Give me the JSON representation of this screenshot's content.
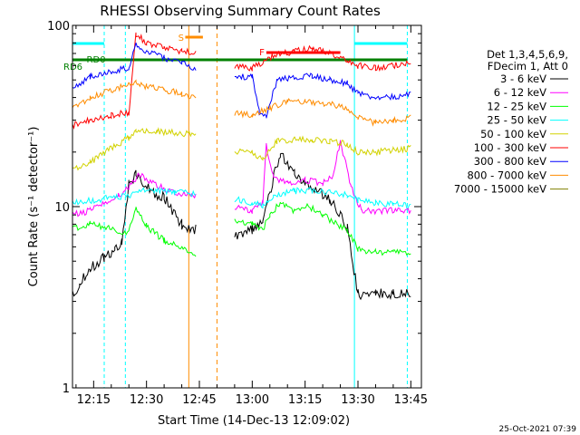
{
  "chart_data": {
    "type": "line",
    "title": "RHESSI Observing Summary Count Rates",
    "xlabel": "Start Time (14-Dec-13 12:09:02)",
    "ylabel": "Count Rate (s⁻¹ detector⁻¹)",
    "y_scale": "log",
    "ylim": [
      1,
      100
    ],
    "xlim": [
      "12:09",
      "13:48"
    ],
    "x_ticks": [
      "12:15",
      "12:30",
      "12:45",
      "13:00",
      "13:15",
      "13:30",
      "13:45"
    ],
    "y_ticks": [
      "1",
      "10",
      "100"
    ],
    "legend_header": [
      "Det 1,3,4,5,6,9,",
      "FDecim 1, Att 0"
    ],
    "legend_position": "right",
    "series": [
      {
        "name": "3 - 6 keV",
        "color": "#000000",
        "x": [
          "12:09",
          "12:11",
          "12:14",
          "12:18",
          "12:21",
          "12:23",
          "12:25",
          "12:27",
          "12:29",
          "12:32",
          "12:35",
          "12:40",
          "12:44",
          "12:50",
          "12:55",
          "13:00",
          "13:03",
          "13:05",
          "13:08",
          "13:12",
          "13:15",
          "13:18",
          "13:22",
          "13:25",
          "13:27",
          "13:30",
          "13:35",
          "13:40",
          "13:45"
        ],
        "y": [
          3.2,
          3.8,
          4.6,
          5.2,
          5.8,
          6.4,
          13.5,
          15.0,
          13.5,
          12.0,
          11.2,
          8.0,
          7.5,
          null,
          7.0,
          7.5,
          8.0,
          12.0,
          20.0,
          15.0,
          13.0,
          12.5,
          11.0,
          9.0,
          7.5,
          3.3,
          3.3,
          3.3,
          3.3
        ]
      },
      {
        "name": "6 - 12 keV",
        "color": "#ff00ff",
        "x": [
          "12:09",
          "12:14",
          "12:18",
          "12:22",
          "12:25",
          "12:28",
          "12:33",
          "12:38",
          "12:44",
          "12:50",
          "12:55",
          "13:00",
          "13:03",
          "13:04",
          "13:06",
          "13:10",
          "13:15",
          "13:20",
          "13:23",
          "13:25",
          "13:28",
          "13:31",
          "13:36",
          "13:41",
          "13:45"
        ],
        "y": [
          9.0,
          9.5,
          10.5,
          11.5,
          12.8,
          15.0,
          13.0,
          12.0,
          11.5,
          null,
          10.0,
          9.5,
          10.5,
          22.0,
          14.5,
          13.5,
          14.0,
          13.5,
          15.0,
          23.0,
          13.0,
          9.5,
          9.5,
          9.5,
          9.5
        ]
      },
      {
        "name": "12 - 25 keV",
        "color": "#00ff00",
        "x": [
          "12:09",
          "12:14",
          "12:20",
          "12:25",
          "12:27",
          "12:30",
          "12:35",
          "12:40",
          "12:44",
          "12:50",
          "12:55",
          "13:00",
          "13:03",
          "13:05",
          "13:08",
          "13:12",
          "13:16",
          "13:20",
          "13:24",
          "13:27",
          "13:30",
          "13:35",
          "13:40",
          "13:45"
        ],
        "y": [
          7.5,
          8.0,
          7.5,
          7.2,
          10.0,
          7.8,
          6.5,
          6.0,
          5.5,
          null,
          8.5,
          8.0,
          7.5,
          9.0,
          10.5,
          9.5,
          10.0,
          9.0,
          8.0,
          7.5,
          5.8,
          5.6,
          5.6,
          5.6
        ]
      },
      {
        "name": "25 - 50 keV",
        "color": "#00ffff",
        "x": [
          "12:09",
          "12:14",
          "12:20",
          "12:25",
          "12:28",
          "12:33",
          "12:38",
          "12:44",
          "12:50",
          "12:55",
          "13:00",
          "13:03",
          "13:06",
          "13:12",
          "13:17",
          "13:22",
          "13:27",
          "13:30",
          "13:35",
          "13:40",
          "13:45"
        ],
        "y": [
          10.5,
          10.8,
          11.2,
          11.5,
          12.5,
          12.2,
          12.0,
          11.8,
          null,
          11.0,
          10.5,
          10.2,
          11.5,
          12.2,
          12.3,
          12.0,
          11.6,
          10.8,
          10.5,
          10.3,
          10.2
        ]
      },
      {
        "name": "50 - 100 keV",
        "color": "#d2d200",
        "x": [
          "12:09",
          "12:14",
          "12:20",
          "12:25",
          "12:27",
          "12:33",
          "12:38",
          "12:44",
          "12:50",
          "12:55",
          "13:00",
          "13:03",
          "13:07",
          "13:12",
          "13:17",
          "13:22",
          "13:27",
          "13:30",
          "13:35",
          "13:40",
          "13:45"
        ],
        "y": [
          16.0,
          17.5,
          21.0,
          24.0,
          26.5,
          26.0,
          25.5,
          25.0,
          null,
          20.0,
          20.0,
          18.0,
          23.0,
          23.5,
          23.5,
          23.0,
          22.0,
          20.0,
          20.0,
          20.5,
          21.0
        ]
      },
      {
        "name": "100 - 300 keV",
        "color": "#ff0000",
        "x": [
          "12:09",
          "12:14",
          "12:20",
          "12:25",
          "12:27",
          "12:30",
          "12:35",
          "12:40",
          "12:44",
          "12:50",
          "12:55",
          "13:00",
          "13:03",
          "13:06",
          "13:12",
          "13:17",
          "13:22",
          "13:27",
          "13:30",
          "13:35",
          "13:40",
          "13:45"
        ],
        "y": [
          28.0,
          30.0,
          32.0,
          33.0,
          90.0,
          80.0,
          75.0,
          72.0,
          70.0,
          null,
          60.0,
          58.0,
          63.0,
          68.0,
          72.0,
          75.0,
          70.0,
          65.0,
          60.0,
          58.0,
          60.0,
          62.0
        ]
      },
      {
        "name": "300 - 800 keV",
        "color": "#0000ff",
        "x": [
          "12:09",
          "12:14",
          "12:20",
          "12:25",
          "12:27",
          "12:30",
          "12:35",
          "12:40",
          "12:44",
          "12:50",
          "12:55",
          "13:00",
          "13:02",
          "13:04",
          "13:07",
          "13:12",
          "13:17",
          "13:22",
          "13:27",
          "13:30",
          "13:35",
          "13:40",
          "13:45"
        ],
        "y": [
          45.0,
          52.0,
          56.0,
          58.0,
          78.0,
          72.0,
          66.0,
          62.0,
          58.0,
          null,
          52.0,
          52.0,
          33.0,
          31.0,
          50.0,
          52.0,
          53.0,
          50.0,
          48.0,
          42.0,
          40.0,
          40.0,
          42.0
        ]
      },
      {
        "name": "800 - 7000 keV",
        "color": "#ff8c00",
        "x": [
          "12:09",
          "12:14",
          "12:20",
          "12:25",
          "12:27",
          "12:30",
          "12:35",
          "12:40",
          "12:44",
          "12:50",
          "12:55",
          "13:00",
          "13:05",
          "13:10",
          "13:15",
          "13:20",
          "13:25",
          "13:30",
          "13:35",
          "13:40",
          "13:45"
        ],
        "y": [
          35.0,
          40.0,
          44.0,
          47.0,
          48.0,
          46.0,
          44.0,
          42.0,
          40.0,
          null,
          33.0,
          32.0,
          35.0,
          38.0,
          38.0,
          37.0,
          36.0,
          31.0,
          29.0,
          30.0,
          31.0
        ]
      },
      {
        "name": "7000 - 15000 keV",
        "color": "#7f7f00",
        "x": [],
        "y": []
      }
    ],
    "flags": [
      {
        "label": "RD0",
        "color": "#008000"
      },
      {
        "label": "RD6",
        "color": "#008000"
      },
      {
        "label": "S",
        "color": "#ff8c00"
      },
      {
        "label": "F",
        "color": "#ff0000"
      }
    ]
  },
  "footer": {
    "date_stamp": "25-Oct-2021 07:39"
  }
}
